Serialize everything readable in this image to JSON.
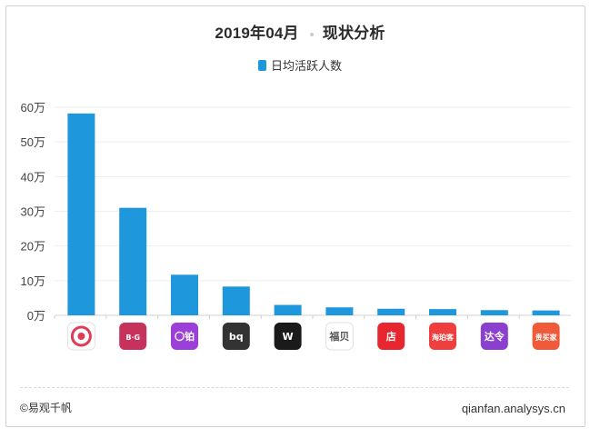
{
  "title_part1": "2019年04月",
  "title_part2": "现状分析",
  "legend_label": "日均活跃人数",
  "footer_left": "©易观千帆",
  "footer_right": "qianfan.analysys.cn",
  "colors": {
    "bar": "#1f97dd",
    "axis": "#d0d0d0",
    "grid": "#eeeeee"
  },
  "chart_data": {
    "type": "bar",
    "title": "2019年04月 现状分析",
    "legend": [
      "日均活跃人数"
    ],
    "y_ticks": [
      "0万",
      "10万",
      "20万",
      "30万",
      "40万",
      "50万",
      "60万"
    ],
    "ylim": [
      0,
      60
    ],
    "y_unit": "万",
    "categories": [
      "app-1",
      "app-2",
      "app-3",
      "app-4",
      "app-5",
      "app-6",
      "app-7",
      "app-8",
      "app-9",
      "app-10"
    ],
    "values": [
      58.2,
      31.0,
      11.7,
      8.3,
      3.0,
      2.3,
      1.9,
      1.8,
      1.5,
      1.4
    ],
    "category_icons": [
      {
        "bg": "#ffffff",
        "fg": "#e23b56",
        "kind": "ring"
      },
      {
        "bg": "#c6325b",
        "fg": "#ffffff",
        "text": "B·G"
      },
      {
        "bg": "#9b3fd8",
        "fg": "#ffffff",
        "text": "〇铂"
      },
      {
        "bg": "#333333",
        "fg": "#ffffff",
        "text": "bq"
      },
      {
        "bg": "#1a1a1a",
        "fg": "#ffffff",
        "text": "W"
      },
      {
        "bg": "#ffffff",
        "fg": "#555555",
        "text": "福贝"
      },
      {
        "bg": "#e8262f",
        "fg": "#ffffff",
        "text": "店"
      },
      {
        "bg": "#ee3e3e",
        "fg": "#ffffff",
        "text": "淘珀客"
      },
      {
        "bg": "#8a3fcf",
        "fg": "#ffffff",
        "text": "达令"
      },
      {
        "bg": "#ef5a3a",
        "fg": "#ffffff",
        "text": "贵买家"
      }
    ]
  }
}
